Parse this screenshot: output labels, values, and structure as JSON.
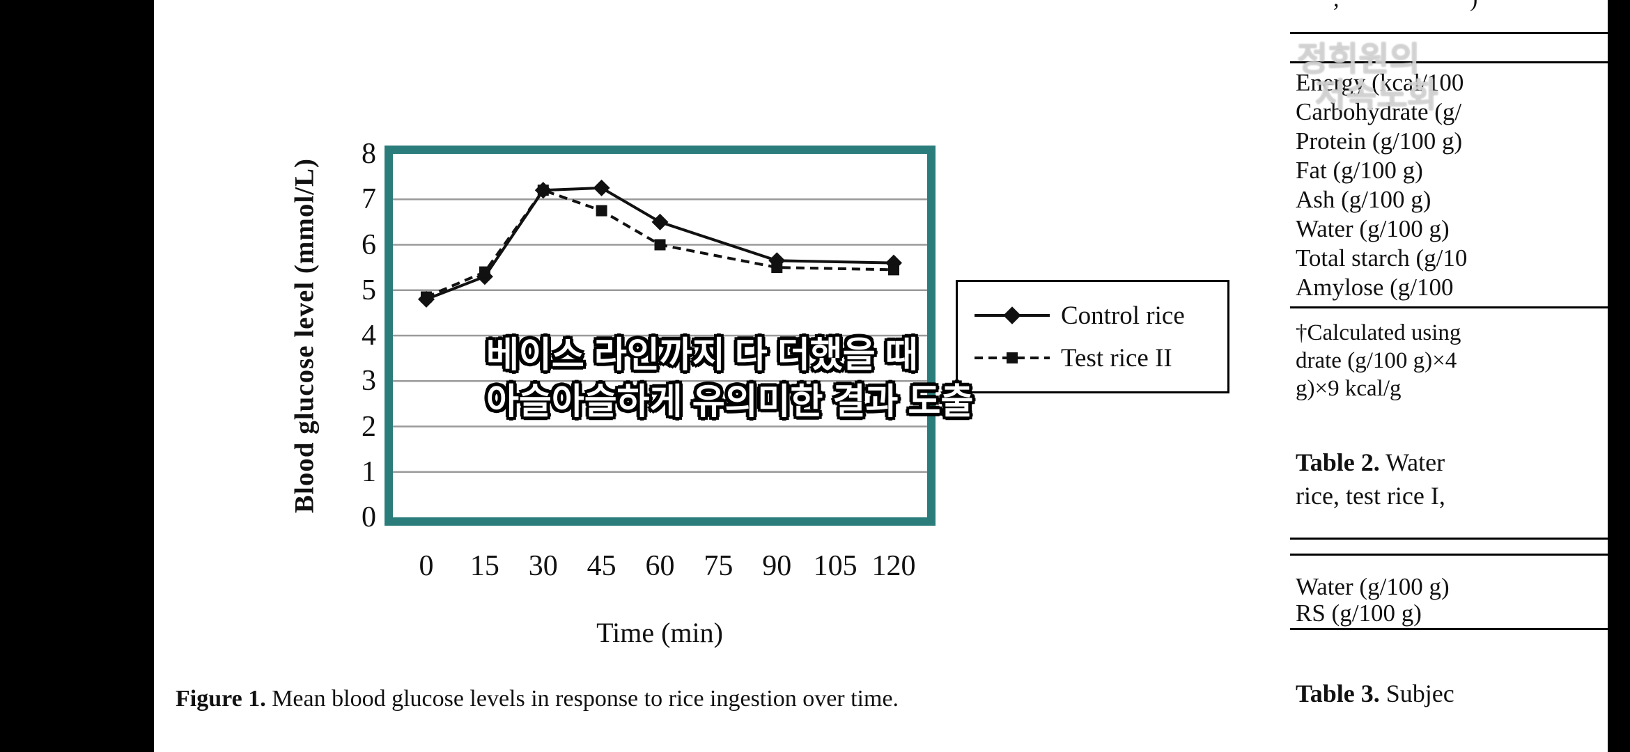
{
  "colors": {
    "plot_border": "#2b7d7b",
    "grid": "#9a9a9a",
    "series": "#111111",
    "letterbox": "#000000"
  },
  "watermark": {
    "line1": "정희원의",
    "line2": "저속노화"
  },
  "subtitle": {
    "line1": "베이스 라인까지 다 더했을 때",
    "line2": "아슬아슬하게 유의미한 결과 도출"
  },
  "figure_caption": {
    "label": "Figure 1.",
    "text": " Mean blood glucose levels in response to rice ingestion over time."
  },
  "chart_data": {
    "type": "line",
    "title": "",
    "xlabel": "Time (min)",
    "ylabel": "Blood glucose level (mmol/L)",
    "x": [
      0,
      15,
      30,
      45,
      60,
      90,
      120
    ],
    "x_ticks": [
      0,
      15,
      30,
      45,
      60,
      75,
      90,
      105,
      120
    ],
    "y_ticks": [
      0,
      1,
      2,
      3,
      4,
      5,
      6,
      7,
      8
    ],
    "ylim": [
      0,
      8
    ],
    "xlim": [
      0,
      120
    ],
    "grid": true,
    "legend_position": "right of plot",
    "series": [
      {
        "name": "Control rice",
        "marker": "diamond",
        "style": "solid",
        "values": [
          4.8,
          5.3,
          7.2,
          7.25,
          6.5,
          5.65,
          5.6
        ]
      },
      {
        "name": "Test rice II",
        "marker": "square",
        "style": "dashed",
        "values": [
          4.85,
          5.4,
          7.2,
          6.75,
          6.0,
          5.5,
          5.45
        ]
      }
    ]
  },
  "paper_column": {
    "top_fragments": [
      ",",
      ")"
    ],
    "table1_rows": [
      "Energy (kcal/100",
      "Carbohydrate (g/",
      "Protein (g/100 g)",
      "Fat (g/100 g)",
      "Ash (g/100 g)",
      "Water (g/100 g)",
      "Total starch (g/10",
      "Amylose (g/100"
    ],
    "footnote_lines": [
      "†Calculated using",
      "drate (g/100 g)×4",
      "g)×9 kcal/g"
    ],
    "table2_label": "Table 2.",
    "table2_caption_rest": " Water",
    "table2_caption_line2": "rice, test rice I,",
    "table2_rows": [
      "Water (g/100 g)",
      "RS (g/100 g)"
    ],
    "table3_label": "Table 3.",
    "table3_caption_rest": " Subjec"
  }
}
